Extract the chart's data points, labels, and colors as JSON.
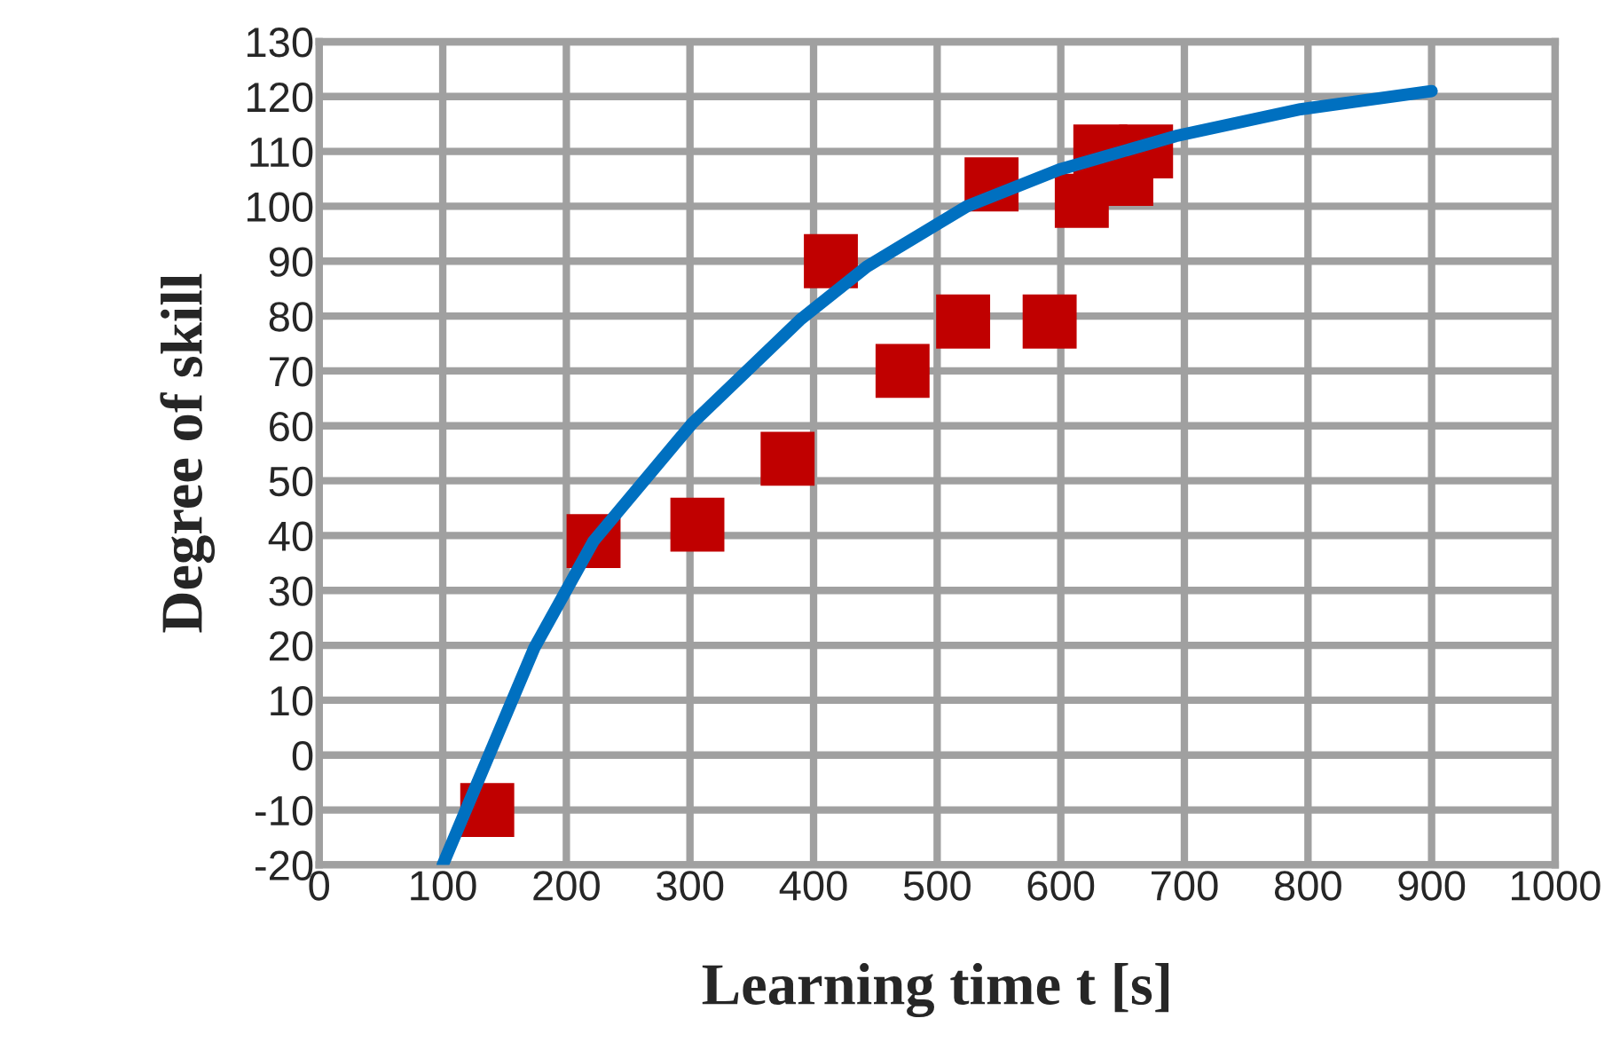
{
  "chart_data": {
    "type": "scatter",
    "xlabel": "Learning time t [s]",
    "ylabel": "Degree of skill",
    "xlim": [
      0,
      1000
    ],
    "xticks": [
      0,
      100,
      200,
      300,
      400,
      500,
      600,
      700,
      800,
      900,
      1000
    ],
    "ylim": [
      -20,
      130
    ],
    "yticks": [
      -20,
      -10,
      0,
      10,
      20,
      30,
      40,
      50,
      60,
      70,
      80,
      90,
      100,
      110,
      120,
      130
    ],
    "grid": true,
    "legend": false,
    "series": [
      {
        "color": "#c00000",
        "marker": "square",
        "x": [
          136,
          222,
          306,
          379,
          414,
          472,
          521,
          544,
          591,
          617,
          632,
          653,
          669
        ],
        "values": [
          -10,
          39,
          42,
          54,
          90,
          70,
          79,
          104,
          79,
          101,
          110,
          105,
          110
        ]
      },
      {
        "type": "line",
        "color": "#0070c0",
        "marker": "none",
        "line_style": "solid",
        "x": [
          100,
          174,
          222,
          302,
          389,
          443,
          524,
          599,
          693,
          794,
          900
        ],
        "values": [
          -20,
          19.5,
          39,
          60.5,
          79.3,
          89,
          100,
          106.7,
          112.8,
          117.7,
          121
        ]
      }
    ]
  }
}
